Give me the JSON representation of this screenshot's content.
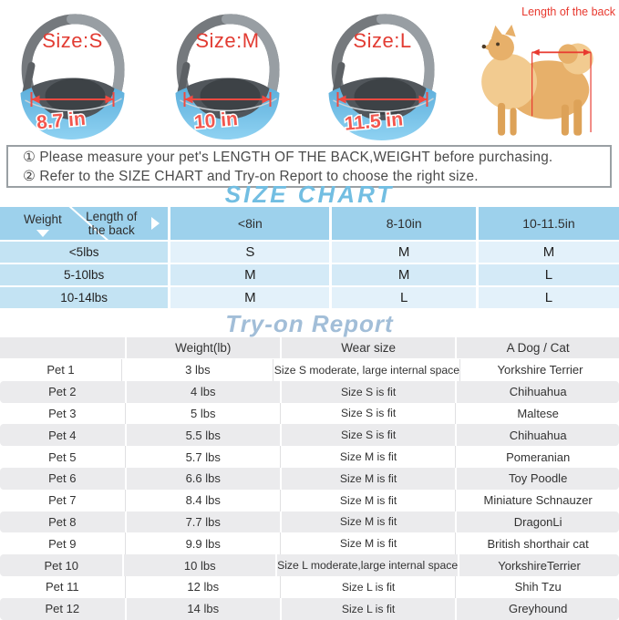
{
  "colors": {
    "annotation_red": "#e8392f",
    "size_label_red": "#e23c33",
    "size_chart_title_blue": "#72bee2",
    "tryon_title_blue": "#a2bed8",
    "table_header_blue": "#9dd1ec",
    "table_first_col_blue": "#c3e3f3",
    "table_row_blue_light": "#e3f1fa",
    "table_row_blue_mid": "#d4eaf7",
    "tryon_row_gray": "#ebebed",
    "pouch_blue": "#6cbfe9"
  },
  "bags": [
    {
      "label": "Size:S",
      "measure": "8.7 in"
    },
    {
      "label": "Size:M",
      "measure": "10 in"
    },
    {
      "label": "Size:L",
      "measure": "11.5 in"
    }
  ],
  "dog": {
    "label": "Length of the back"
  },
  "notice": {
    "line1": "① Please measure your pet's LENGTH OF THE BACK,WEIGHT before purchasing.",
    "line2": "② Refer to the SIZE CHART and Try-on Report to choose the right size."
  },
  "size_chart": {
    "title": "SIZE CHART",
    "corner": {
      "row_axis": "Weight",
      "col_axis": "Length of the back"
    },
    "columns": [
      "<8in",
      "8-10in",
      "10-11.5in"
    ],
    "rows": [
      {
        "weight": "<5lbs",
        "sizes": [
          "S",
          "M",
          "M"
        ]
      },
      {
        "weight": "5-10lbs",
        "sizes": [
          "M",
          "M",
          "L"
        ]
      },
      {
        "weight": "10-14lbs",
        "sizes": [
          "M",
          "L",
          "L"
        ]
      }
    ]
  },
  "tryon": {
    "title": "Try-on Report",
    "headers": [
      "",
      "Weight(lb)",
      "Wear size",
      "A Dog / Cat"
    ],
    "rows": [
      {
        "pet": "Pet 1",
        "weight": "3 lbs",
        "wear": "Size S moderate, large internal space",
        "animal": "Yorkshire Terrier"
      },
      {
        "pet": "Pet 2",
        "weight": "4 lbs",
        "wear": "Size S is fit",
        "animal": "Chihuahua"
      },
      {
        "pet": "Pet 3",
        "weight": "5 lbs",
        "wear": "Size S is fit",
        "animal": "Maltese"
      },
      {
        "pet": "Pet 4",
        "weight": "5.5 lbs",
        "wear": "Size S is fit",
        "animal": "Chihuahua"
      },
      {
        "pet": "Pet 5",
        "weight": "5.7 lbs",
        "wear": "Size M is fit",
        "animal": "Pomeranian"
      },
      {
        "pet": "Pet 6",
        "weight": "6.6 lbs",
        "wear": "Size M is fit",
        "animal": "Toy Poodle"
      },
      {
        "pet": "Pet 7",
        "weight": "8.4 lbs",
        "wear": "Size M is fit",
        "animal": "Miniature Schnauzer"
      },
      {
        "pet": "Pet 8",
        "weight": "7.7 lbs",
        "wear": "Size M is fit",
        "animal": "DragonLi"
      },
      {
        "pet": "Pet 9",
        "weight": "9.9 lbs",
        "wear": "Size M is fit",
        "animal": "British shorthair cat"
      },
      {
        "pet": "Pet 10",
        "weight": "10 lbs",
        "wear": "Size L moderate,large internal space",
        "animal": "YorkshireTerrier"
      },
      {
        "pet": "Pet 11",
        "weight": "12 lbs",
        "wear": "Size L is fit",
        "animal": "Shih Tzu"
      },
      {
        "pet": "Pet 12",
        "weight": "14 lbs",
        "wear": "Size L is fit",
        "animal": "Greyhound"
      }
    ]
  }
}
